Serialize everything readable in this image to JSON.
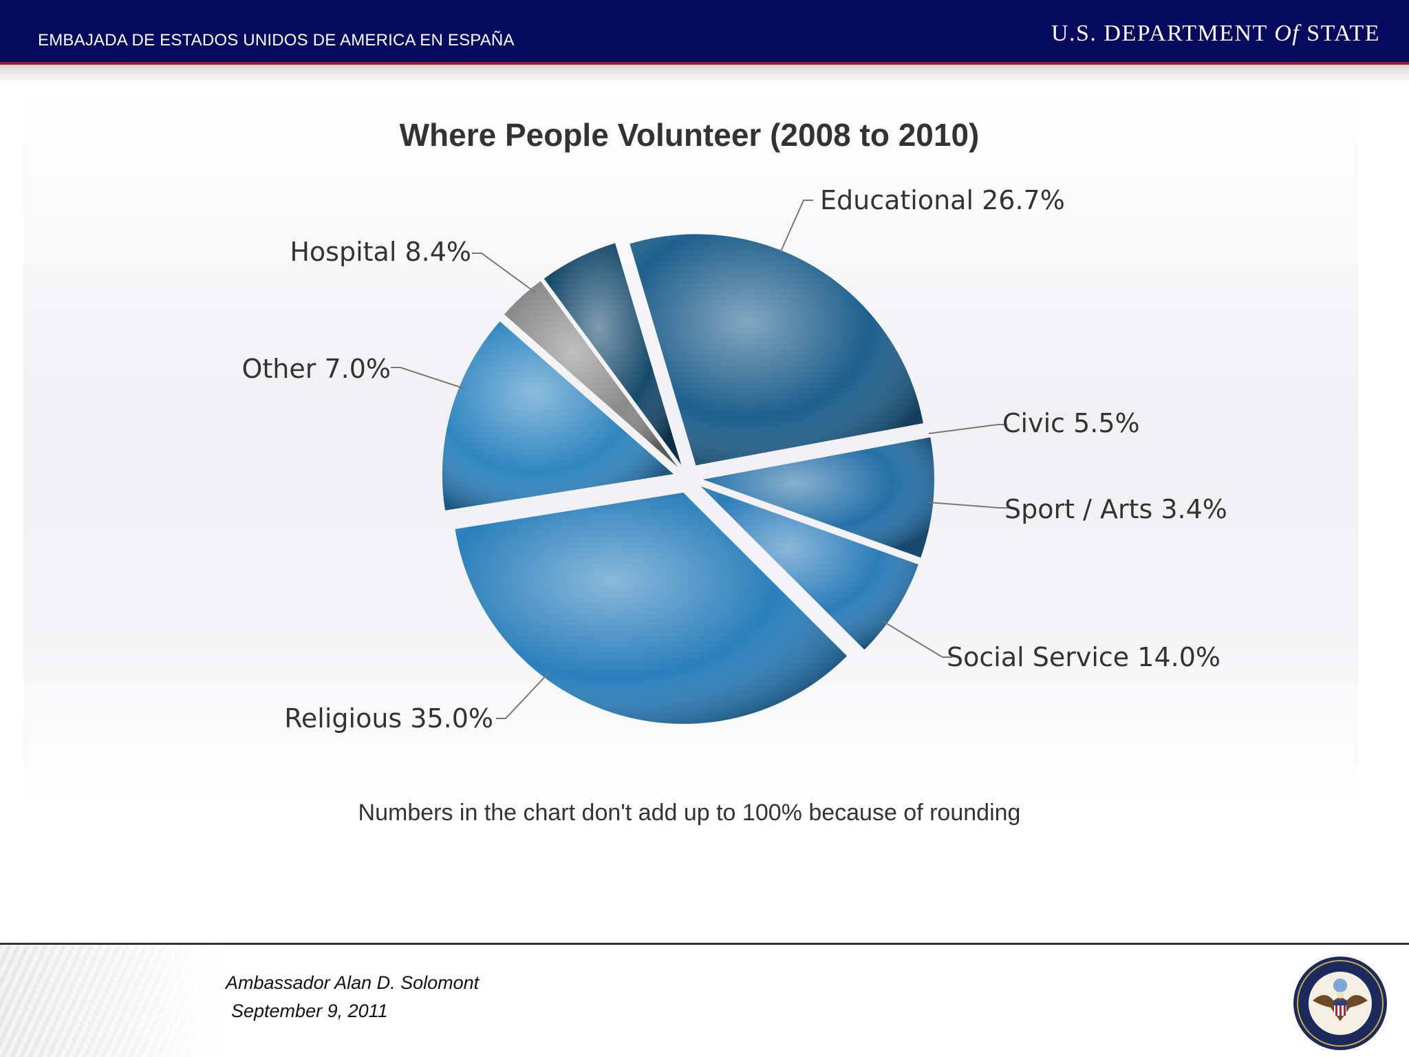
{
  "header": {
    "embassy_title": "EMBAJADA DE ESTADOS UNIDOS DE AMERICA EN ESPAÑA",
    "department_pre": "U.S. DEPARTMENT ",
    "department_of": "Of",
    "department_post": " STATE",
    "background_color": "#060a5e",
    "accent_line_color": "#9b1b2a"
  },
  "chart_data": {
    "type": "pie",
    "title": "Where People Volunteer (2008 to 2010)",
    "note": "Numbers in the chart don't add up to 100% because of rounding",
    "slices": [
      {
        "label": "Educational 26.7%",
        "value": 26.7,
        "color": "#1e5f8c"
      },
      {
        "label": "Civic 5.5%",
        "value": 5.5,
        "color": "#164a6b"
      },
      {
        "label": "Sport / Arts 3.4%",
        "value": 3.4,
        "color": "#8a8a8a"
      },
      {
        "label": "Social Service 14.0%",
        "value": 14.0,
        "color": "#2f86c1"
      },
      {
        "label": "Religious 35.0%",
        "value": 35.0,
        "color": "#2a7fbc"
      },
      {
        "label": "Other 7.0%",
        "value": 7.0,
        "color": "#2b7dba"
      },
      {
        "label": "Hospital 8.4%",
        "value": 8.4,
        "color": "#2470a8"
      }
    ],
    "legend": "none",
    "grid": false
  },
  "footer": {
    "presenter": "Ambassador Alan D. Solomont",
    "date": "September 9, 2011",
    "seal_icon": "department-of-state-seal-icon"
  }
}
